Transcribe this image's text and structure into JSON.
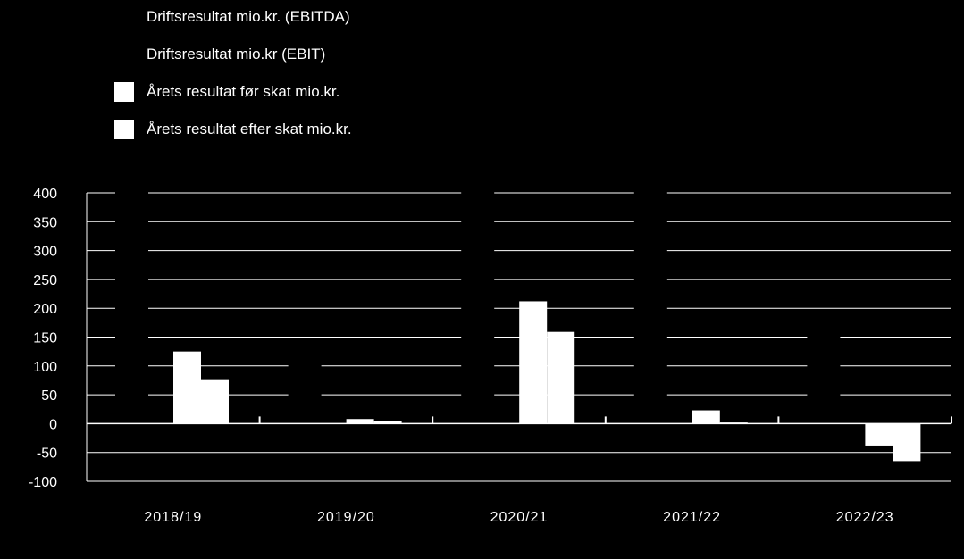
{
  "chart_data": {
    "type": "bar",
    "categories": [
      "2018/19",
      "2019/20",
      "2020/21",
      "2021/22",
      "2022/23"
    ],
    "series": [
      {
        "name": "Driftsresultat mio.kr. (EBITDA)",
        "values": [
          null,
          null,
          null,
          null,
          null
        ],
        "visible": false
      },
      {
        "name": "Driftsresultat mio.kr (EBIT)",
        "values": [
          null,
          null,
          null,
          null,
          null
        ],
        "visible": false
      },
      {
        "name": "Årets resultat før skat mio.kr.",
        "values": [
          125,
          8,
          212,
          23,
          -38
        ]
      },
      {
        "name": "Årets resultat efter skat mio.kr.",
        "values": [
          77,
          5,
          159,
          2,
          -65
        ]
      }
    ],
    "yticks": [
      "400",
      "350",
      "300",
      "250",
      "200",
      "150",
      "100",
      "50",
      "0",
      "-50",
      "-100"
    ],
    "ylim": [
      -100,
      400
    ],
    "ytick_step": 50,
    "grid": true,
    "legend_position": "top-left",
    "colors": {
      "background": "#000000",
      "bars": "#ffffff",
      "grid": "#ffffff",
      "text": "#ffffff"
    }
  }
}
